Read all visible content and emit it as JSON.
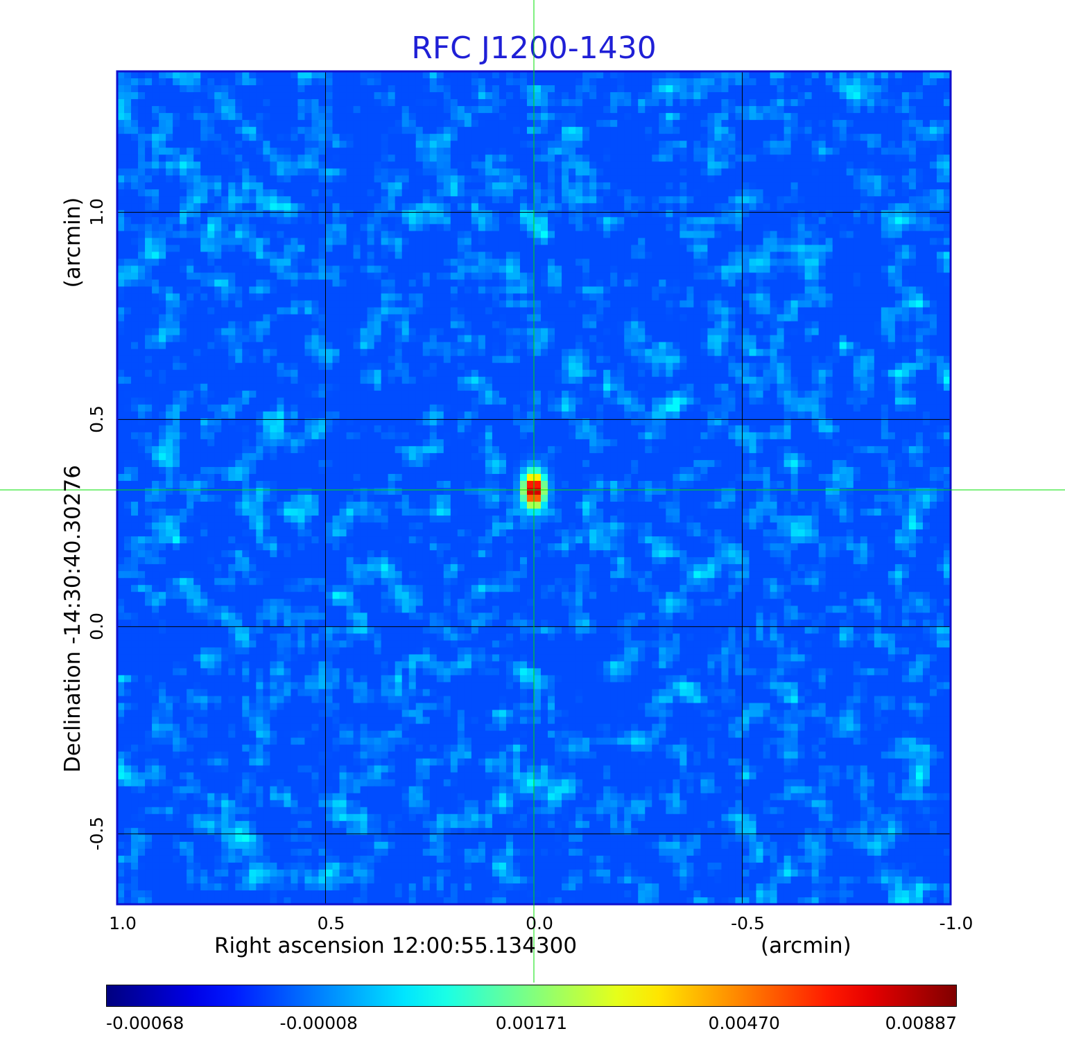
{
  "chart_data": {
    "type": "heatmap",
    "title": "RFC J1200-1430",
    "xlabel": "Right ascension  12:00:55.134300",
    "xunit": "(arcmin)",
    "ylabel": "Declination  -14:30:40.30276",
    "yunit": "(arcmin)",
    "x_ticks": [
      "1.0",
      "0.5",
      "0.0",
      "-0.5",
      "-1.0"
    ],
    "y_ticks": [
      "-0.5",
      "0.0",
      "0.5",
      "1.0"
    ],
    "xlim": [
      1.0,
      -1.0
    ],
    "ylim": [
      -0.67,
      1.34
    ],
    "grid": true,
    "crosshair": {
      "x": 0.0,
      "y": 0.33,
      "color": "#00e000"
    },
    "source_peak": {
      "ra_arcmin": 0.0,
      "dec_arcmin": 0.33,
      "value": 0.00887
    },
    "colorbar": {
      "colormap": "jet",
      "ticks": [
        "-0.00068",
        "-0.00008",
        "0.00171",
        "0.00470",
        "0.00887"
      ]
    },
    "frame_color": "#1010d0"
  }
}
